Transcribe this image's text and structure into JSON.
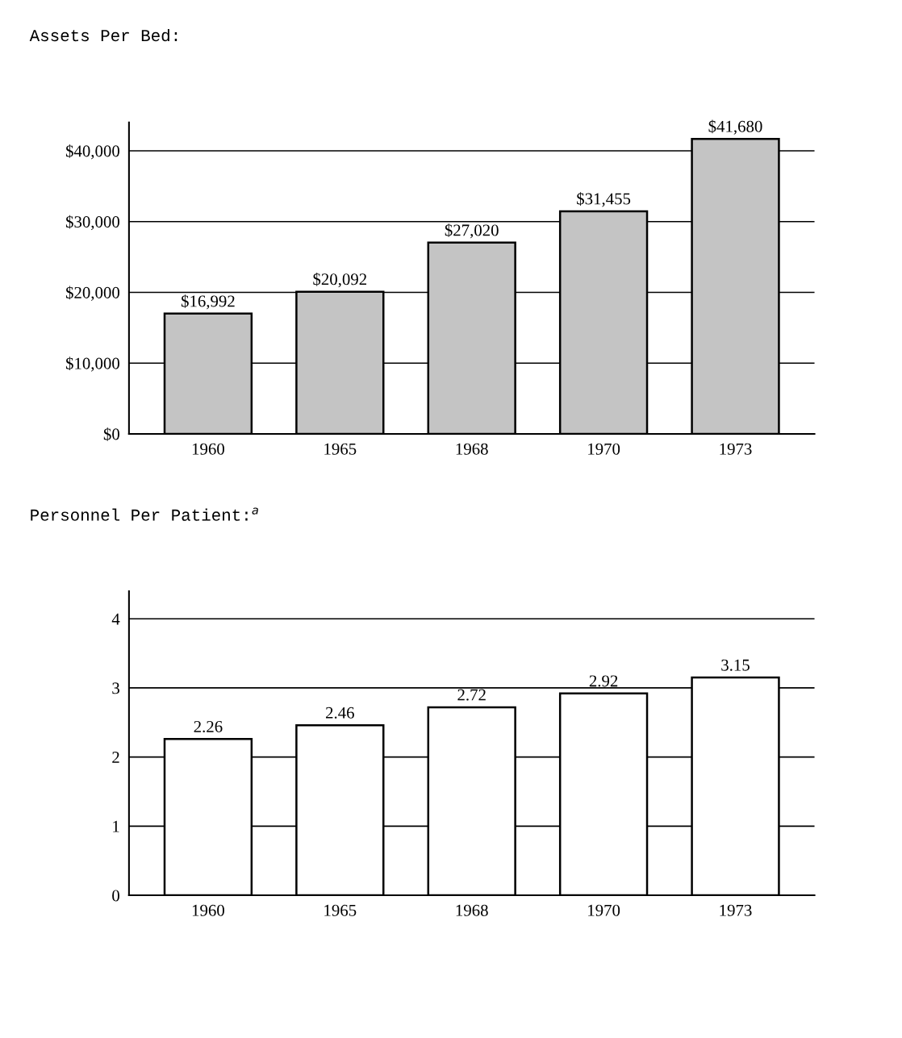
{
  "chart_data": [
    {
      "type": "bar",
      "title": "Assets Per Bed:",
      "categories": [
        "1960",
        "1965",
        "1968",
        "1970",
        "1973"
      ],
      "values": [
        16992,
        20092,
        27020,
        31455,
        41680
      ],
      "value_labels": [
        "$16,992",
        "$20,092",
        "$27,020",
        "$31,455",
        "$41,680"
      ],
      "color": "#c4c4c4",
      "ylim": [
        0,
        44000
      ],
      "yticks": [
        {
          "value": 0,
          "label": "$0"
        },
        {
          "value": 10000,
          "label": "$10,000"
        },
        {
          "value": 20000,
          "label": "$20,000"
        },
        {
          "value": 30000,
          "label": "$30,000"
        },
        {
          "value": 40000,
          "label": "$40,000"
        }
      ],
      "grid": "y"
    },
    {
      "type": "bar",
      "title": "Personnel Per Patient:$^{a}$",
      "categories": [
        "1960",
        "1965",
        "1968",
        "1970",
        "1973"
      ],
      "values": [
        2.26,
        2.46,
        2.72,
        2.92,
        3.15
      ],
      "data_labels": true,
      "color": "#ffffff",
      "ylim": [
        0,
        4.4
      ],
      "yticks": [
        0,
        1,
        2,
        3,
        4
      ],
      "grid": "y"
    }
  ]
}
